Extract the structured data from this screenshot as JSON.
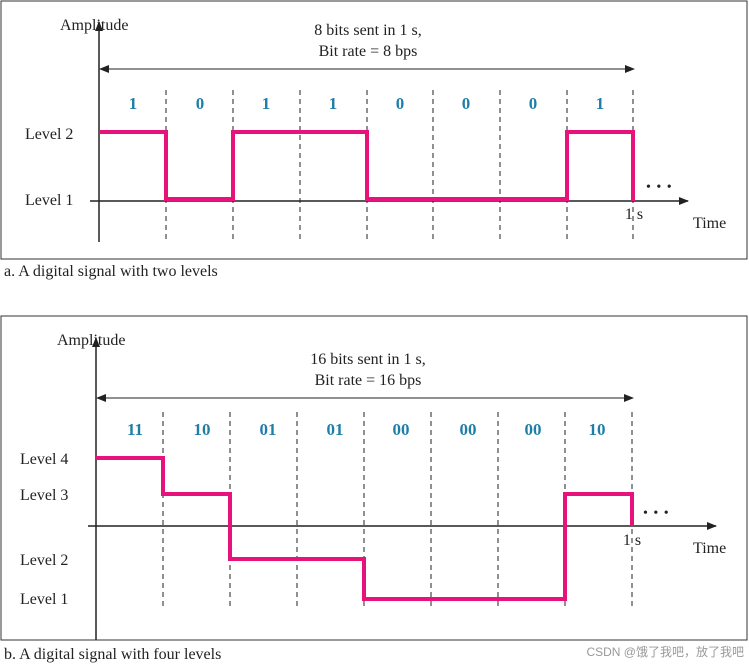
{
  "panel_a": {
    "axis_label_y": "Amplitude",
    "axis_label_x": "Time",
    "header_line1": "8 bits sent in 1 s,",
    "header_line2": "Bit rate = 8 bps",
    "levels": [
      "Level 2",
      "Level 1"
    ],
    "bits": [
      "1",
      "0",
      "1",
      "1",
      "0",
      "0",
      "0",
      "1"
    ],
    "signal_levels": [
      2,
      1,
      2,
      2,
      1,
      1,
      1,
      2
    ],
    "end_tick": "1 s",
    "ellipsis": "• • •",
    "caption": "a. A digital signal with two levels"
  },
  "panel_b": {
    "axis_label_y": "Amplitude",
    "axis_label_x": "Time",
    "header_line1": "16 bits sent in 1 s,",
    "header_line2": "Bit rate = 16 bps",
    "levels": [
      "Level 4",
      "Level 3",
      "Level 2",
      "Level 1"
    ],
    "bits": [
      "11",
      "10",
      "01",
      "01",
      "00",
      "00",
      "00",
      "10"
    ],
    "signal_levels": [
      4,
      3,
      2,
      2,
      1,
      1,
      1,
      3
    ],
    "end_tick": "1 s",
    "ellipsis": "• • •",
    "caption": "b. A digital signal with four levels"
  },
  "watermark": "CSDN @饿了我吧，放了我吧",
  "colors": {
    "signal": "#e8127c",
    "bit_text": "#1f7ea8",
    "axis": "#222222"
  }
}
